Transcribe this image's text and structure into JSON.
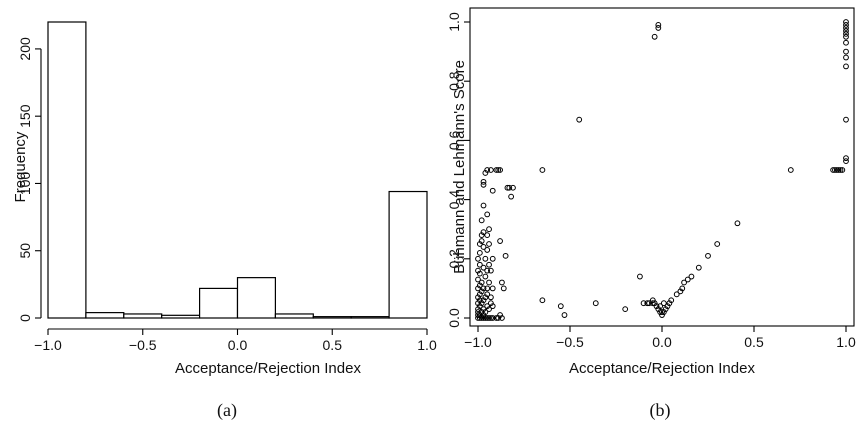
{
  "chart_data": [
    {
      "type": "bar",
      "subtype": "histogram",
      "caption": "(a)",
      "xlabel": "Acceptance/Rejection Index",
      "ylabel": "Frequency",
      "bins": [
        [
          -1.0,
          -0.8
        ],
        [
          -0.8,
          -0.6
        ],
        [
          -0.6,
          -0.4
        ],
        [
          -0.4,
          -0.2
        ],
        [
          -0.2,
          0.0
        ],
        [
          0.0,
          0.2
        ],
        [
          0.2,
          0.4
        ],
        [
          0.4,
          0.6
        ],
        [
          0.6,
          0.8
        ],
        [
          0.8,
          1.0
        ]
      ],
      "values": [
        220,
        4,
        3,
        2,
        22,
        30,
        3,
        1,
        1,
        94
      ],
      "xlim": [
        -1.0,
        1.0
      ],
      "ylim": [
        0,
        220
      ],
      "xticks": [
        -1.0,
        -0.5,
        0.0,
        0.5,
        1.0
      ],
      "xtick_labels": [
        "−1.0",
        "−0.5",
        "0.0",
        "0.5",
        "1.0"
      ],
      "yticks": [
        0,
        50,
        100,
        150,
        200
      ],
      "ytick_labels": [
        "0",
        "50",
        "100",
        "150",
        "200"
      ]
    },
    {
      "type": "scatter",
      "caption": "(b)",
      "xlabel": "Acceptance/Rejection Index",
      "ylabel": "Bühmann and Lehmann's Score",
      "xlim": [
        -1.0,
        1.0
      ],
      "ylim": [
        0.0,
        1.0
      ],
      "xticks": [
        -1.0,
        -0.5,
        0.0,
        0.5,
        1.0
      ],
      "xtick_labels": [
        "−1.0",
        "−0.5",
        "0.0",
        "0.5",
        "1.0"
      ],
      "yticks": [
        0.0,
        0.2,
        0.4,
        0.6,
        0.8,
        1.0
      ],
      "ytick_labels": [
        "0.0",
        "0.2",
        "0.4",
        "0.6",
        "0.8",
        "1.0"
      ],
      "points": [
        [
          -1.0,
          0.0
        ],
        [
          -1.0,
          0.01
        ],
        [
          -1.0,
          0.02
        ],
        [
          -1.0,
          0.03
        ],
        [
          -1.0,
          0.05
        ],
        [
          -1.0,
          0.07
        ],
        [
          -1.0,
          0.1
        ],
        [
          -1.0,
          0.13
        ],
        [
          -1.0,
          0.16
        ],
        [
          -1.0,
          0.2
        ],
        [
          -0.99,
          0.0
        ],
        [
          -0.99,
          0.01
        ],
        [
          -0.99,
          0.04
        ],
        [
          -0.99,
          0.06
        ],
        [
          -0.99,
          0.08
        ],
        [
          -0.99,
          0.11
        ],
        [
          -0.99,
          0.15
        ],
        [
          -0.99,
          0.18
        ],
        [
          -0.99,
          0.22
        ],
        [
          -0.99,
          0.25
        ],
        [
          -0.98,
          0.0
        ],
        [
          -0.98,
          0.02
        ],
        [
          -0.98,
          0.05
        ],
        [
          -0.98,
          0.09
        ],
        [
          -0.98,
          0.12
        ],
        [
          -0.98,
          0.26
        ],
        [
          -0.98,
          0.28
        ],
        [
          -0.98,
          0.33
        ],
        [
          -0.97,
          0.0
        ],
        [
          -0.97,
          0.01
        ],
        [
          -0.97,
          0.03
        ],
        [
          -0.97,
          0.06
        ],
        [
          -0.97,
          0.1
        ],
        [
          -0.97,
          0.17
        ],
        [
          -0.97,
          0.24
        ],
        [
          -0.97,
          0.29
        ],
        [
          -0.97,
          0.38
        ],
        [
          -0.97,
          0.45
        ],
        [
          -0.97,
          0.46
        ],
        [
          -0.96,
          0.0
        ],
        [
          -0.96,
          0.02
        ],
        [
          -0.96,
          0.07
        ],
        [
          -0.96,
          0.14
        ],
        [
          -0.96,
          0.2
        ],
        [
          -0.96,
          0.49
        ],
        [
          -0.95,
          0.0
        ],
        [
          -0.95,
          0.04
        ],
        [
          -0.95,
          0.08
        ],
        [
          -0.95,
          0.1
        ],
        [
          -0.95,
          0.16
        ],
        [
          -0.95,
          0.23
        ],
        [
          -0.95,
          0.28
        ],
        [
          -0.95,
          0.35
        ],
        [
          -0.95,
          0.5
        ],
        [
          -0.94,
          0.0
        ],
        [
          -0.94,
          0.03
        ],
        [
          -0.94,
          0.12
        ],
        [
          -0.94,
          0.18
        ],
        [
          -0.94,
          0.25
        ],
        [
          -0.94,
          0.3
        ],
        [
          -0.93,
          0.0
        ],
        [
          -0.93,
          0.05
        ],
        [
          -0.93,
          0.07
        ],
        [
          -0.93,
          0.16
        ],
        [
          -0.93,
          0.5
        ],
        [
          -0.92,
          0.0
        ],
        [
          -0.92,
          0.04
        ],
        [
          -0.92,
          0.1
        ],
        [
          -0.92,
          0.2
        ],
        [
          -0.92,
          0.43
        ],
        [
          -0.9,
          0.0
        ],
        [
          -0.9,
          0.5
        ],
        [
          -0.89,
          0.0
        ],
        [
          -0.89,
          0.5
        ],
        [
          -0.88,
          0.01
        ],
        [
          -0.88,
          0.26
        ],
        [
          -0.88,
          0.5
        ],
        [
          -0.87,
          0.0
        ],
        [
          -0.87,
          0.12
        ],
        [
          -0.86,
          0.1
        ],
        [
          -0.85,
          0.21
        ],
        [
          -0.84,
          0.44
        ],
        [
          -0.83,
          0.44
        ],
        [
          -0.82,
          0.41
        ],
        [
          -0.81,
          0.44
        ],
        [
          -0.65,
          0.5
        ],
        [
          -0.65,
          0.06
        ],
        [
          -0.55,
          0.04
        ],
        [
          -0.53,
          0.01
        ],
        [
          -0.45,
          0.67
        ],
        [
          -0.36,
          0.05
        ],
        [
          -0.2,
          0.03
        ],
        [
          -0.12,
          0.14
        ],
        [
          -0.1,
          0.05
        ],
        [
          -0.08,
          0.05
        ],
        [
          -0.07,
          0.05
        ],
        [
          -0.05,
          0.05
        ],
        [
          -0.05,
          0.06
        ],
        [
          -0.04,
          0.05
        ],
        [
          -0.04,
          0.95
        ],
        [
          -0.03,
          0.04
        ],
        [
          -0.02,
          0.99
        ],
        [
          -0.02,
          0.98
        ],
        [
          -0.02,
          0.03
        ],
        [
          -0.01,
          0.02
        ],
        [
          -0.01,
          0.04
        ],
        [
          0.0,
          0.01
        ],
        [
          0.0,
          0.02
        ],
        [
          0.01,
          0.02
        ],
        [
          0.01,
          0.05
        ],
        [
          0.02,
          0.03
        ],
        [
          0.03,
          0.04
        ],
        [
          0.04,
          0.05
        ],
        [
          0.05,
          0.06
        ],
        [
          0.08,
          0.08
        ],
        [
          0.1,
          0.09
        ],
        [
          0.11,
          0.1
        ],
        [
          0.12,
          0.12
        ],
        [
          0.14,
          0.13
        ],
        [
          0.16,
          0.14
        ],
        [
          0.2,
          0.17
        ],
        [
          0.25,
          0.21
        ],
        [
          0.3,
          0.25
        ],
        [
          0.41,
          0.32
        ],
        [
          0.7,
          0.5
        ],
        [
          0.93,
          0.5
        ],
        [
          0.94,
          0.5
        ],
        [
          0.95,
          0.5
        ],
        [
          0.96,
          0.5
        ],
        [
          0.97,
          0.5
        ],
        [
          0.98,
          0.5
        ],
        [
          1.0,
          0.53
        ],
        [
          1.0,
          0.54
        ],
        [
          1.0,
          0.67
        ],
        [
          1.0,
          0.85
        ],
        [
          1.0,
          0.88
        ],
        [
          1.0,
          0.9
        ],
        [
          1.0,
          0.93
        ],
        [
          1.0,
          0.95
        ],
        [
          1.0,
          0.96
        ],
        [
          1.0,
          0.97
        ],
        [
          1.0,
          0.98
        ],
        [
          1.0,
          0.99
        ],
        [
          1.0,
          1.0
        ]
      ]
    }
  ]
}
